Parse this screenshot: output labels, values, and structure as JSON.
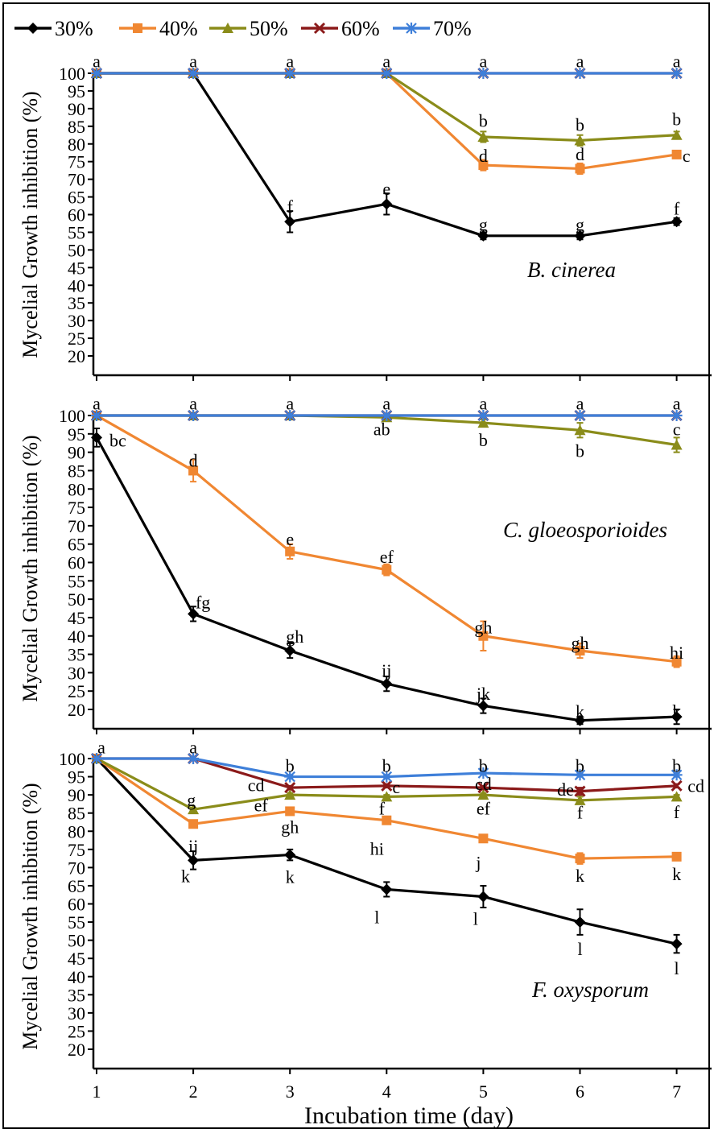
{
  "chart_data": {
    "type": "line",
    "xlabel": "Incubation time (day)",
    "x": [
      1,
      2,
      3,
      4,
      5,
      6,
      7
    ],
    "legend_position": "top",
    "legend": [
      {
        "name": "30%",
        "color": "#000000",
        "marker": "diamond"
      },
      {
        "name": "40%",
        "color": "#F08732",
        "marker": "square"
      },
      {
        "name": "50%",
        "color": "#8A8C1A",
        "marker": "triangle"
      },
      {
        "name": "60%",
        "color": "#8B1A1A",
        "marker": "x"
      },
      {
        "name": "70%",
        "color": "#3E7FD9",
        "marker": "asterisk"
      }
    ],
    "panels": [
      {
        "title": "B. cinerea",
        "ylabel": "Mycelial Growth inhibition (%)",
        "ylim": [
          15,
          100
        ],
        "yticks": [
          20,
          25,
          30,
          35,
          40,
          45,
          50,
          55,
          60,
          65,
          70,
          75,
          80,
          85,
          90,
          95,
          100
        ],
        "series": [
          {
            "name": "30%",
            "values": [
              100,
              100,
              58,
              63,
              54,
              54,
              58
            ],
            "errors": [
              0,
              0,
              3,
              3,
              1,
              1,
              1
            ]
          },
          {
            "name": "40%",
            "values": [
              100,
              100,
              100,
              100,
              74,
              73,
              77
            ],
            "errors": [
              0,
              0,
              0,
              0,
              1.5,
              1.5,
              1
            ]
          },
          {
            "name": "50%",
            "values": [
              100,
              100,
              100,
              100,
              82,
              81,
              82.5
            ],
            "errors": [
              0,
              0,
              0,
              0,
              1.5,
              1.5,
              1
            ]
          },
          {
            "name": "60%",
            "values": [
              100,
              100,
              100,
              100,
              100,
              100,
              100
            ],
            "errors": [
              0,
              0,
              0,
              0,
              0,
              0,
              0
            ]
          },
          {
            "name": "70%",
            "values": [
              100,
              100,
              100,
              100,
              100,
              100,
              100
            ],
            "errors": [
              0,
              0,
              0,
              0,
              0,
              0,
              0
            ]
          }
        ],
        "annotations": [
          {
            "text": "a",
            "x": 1,
            "y": 103.3
          },
          {
            "text": "a",
            "x": 2,
            "y": 103.3
          },
          {
            "text": "a",
            "x": 3,
            "y": 103.3
          },
          {
            "text": "a",
            "x": 4,
            "y": 103.3
          },
          {
            "text": "a",
            "x": 5,
            "y": 103.3
          },
          {
            "text": "a",
            "x": 6,
            "y": 103.3
          },
          {
            "text": "a",
            "x": 7,
            "y": 103.3
          },
          {
            "text": "f",
            "x": 3,
            "y": 62.2
          },
          {
            "text": "e",
            "x": 4,
            "y": 67.2
          },
          {
            "text": "g",
            "x": 5,
            "y": 57.0
          },
          {
            "text": "g",
            "x": 6,
            "y": 57.0
          },
          {
            "text": "f",
            "x": 7,
            "y": 61.6
          },
          {
            "text": "d",
            "x": 5,
            "y": 76.5
          },
          {
            "text": "d",
            "x": 6,
            "y": 77.0
          },
          {
            "text": "c",
            "x": 7.1,
            "y": 76.5
          },
          {
            "text": "b",
            "x": 5,
            "y": 86.4
          },
          {
            "text": "b",
            "x": 6,
            "y": 85.3
          },
          {
            "text": "b",
            "x": 7,
            "y": 86.9
          }
        ]
      },
      {
        "title": "C. gloeosporioides",
        "ylabel": "Mycelial Growth inhibition (%)",
        "ylim": [
          15,
          100
        ],
        "yticks": [
          20,
          25,
          30,
          35,
          40,
          45,
          50,
          55,
          60,
          65,
          70,
          75,
          80,
          85,
          90,
          95,
          100
        ],
        "series": [
          {
            "name": "30%",
            "values": [
              94,
              46,
              36,
              27,
              21,
              17,
              18
            ],
            "errors": [
              2.5,
              2,
              2,
              2,
              2,
              1,
              2
            ]
          },
          {
            "name": "40%",
            "values": [
              100,
              85,
              63,
              58,
              40,
              36,
              33
            ],
            "errors": [
              0,
              3,
              2,
              1.5,
              4,
              2,
              1.5
            ]
          },
          {
            "name": "50%",
            "values": [
              100,
              100,
              100,
              99.5,
              98,
              96,
              92
            ],
            "errors": [
              0,
              0,
              0,
              0.5,
              1,
              2,
              2
            ]
          },
          {
            "name": "60%",
            "values": [
              100,
              100,
              100,
              100,
              100,
              100,
              100
            ],
            "errors": [
              0,
              0,
              0,
              0,
              0,
              0,
              0
            ]
          },
          {
            "name": "70%",
            "values": [
              100,
              100,
              100,
              100,
              100,
              100,
              100
            ],
            "errors": [
              0,
              0,
              0,
              0,
              0,
              0,
              0
            ]
          }
        ],
        "annotations": [
          {
            "text": "a",
            "x": 1,
            "y": 103.2
          },
          {
            "text": "a",
            "x": 2,
            "y": 103.2
          },
          {
            "text": "a",
            "x": 3,
            "y": 103.2
          },
          {
            "text": "a",
            "x": 4,
            "y": 103.2
          },
          {
            "text": "a",
            "x": 5,
            "y": 103.2
          },
          {
            "text": "a",
            "x": 6,
            "y": 103.2
          },
          {
            "text": "a",
            "x": 7,
            "y": 103.2
          },
          {
            "text": "bc",
            "x": 1.22,
            "y": 93.1
          },
          {
            "text": "d",
            "x": 2,
            "y": 87.6
          },
          {
            "text": "e",
            "x": 3,
            "y": 66.3
          },
          {
            "text": "ef",
            "x": 4,
            "y": 61.4
          },
          {
            "text": "gh",
            "x": 5,
            "y": 42.2
          },
          {
            "text": "gh",
            "x": 6,
            "y": 38.0
          },
          {
            "text": "hi",
            "x": 7,
            "y": 35.3
          },
          {
            "text": "fg",
            "x": 2.1,
            "y": 49.0
          },
          {
            "text": "gh",
            "x": 3.05,
            "y": 39.7
          },
          {
            "text": "ij",
            "x": 4,
            "y": 30.5
          },
          {
            "text": "jk",
            "x": 5,
            "y": 24.2
          },
          {
            "text": "k",
            "x": 6,
            "y": 19.3
          },
          {
            "text": "k",
            "x": 7,
            "y": 19.5
          },
          {
            "text": "ab",
            "x": 3.95,
            "y": 96.2
          },
          {
            "text": "b",
            "x": 5,
            "y": 93.2
          },
          {
            "text": "b",
            "x": 6,
            "y": 90.3
          },
          {
            "text": "c",
            "x": 7,
            "y": 96.2
          }
        ]
      },
      {
        "title": "F. oxysporum",
        "ylabel": "Mycelial Growth inhibition (%)",
        "ylim": [
          15,
          100
        ],
        "yticks": [
          20,
          25,
          30,
          35,
          40,
          45,
          50,
          55,
          60,
          65,
          70,
          75,
          80,
          85,
          90,
          95,
          100
        ],
        "series": [
          {
            "name": "30%",
            "values": [
              100,
              72,
              73.5,
              64,
              62,
              55,
              49
            ],
            "errors": [
              0,
              2.5,
              1.5,
              2,
              3,
              3.5,
              2.5
            ]
          },
          {
            "name": "40%",
            "values": [
              100,
              82,
              85.5,
              83,
              78,
              72.5,
              73
            ],
            "errors": [
              0,
              1,
              0.5,
              1,
              0.5,
              1.5,
              0.5
            ]
          },
          {
            "name": "50%",
            "values": [
              100,
              86,
              90,
              89.5,
              90,
              88.5,
              89.5
            ],
            "errors": [
              0,
              0.5,
              0.5,
              0.5,
              0.5,
              1,
              0.5
            ]
          },
          {
            "name": "60%",
            "values": [
              100,
              100,
              92,
              92.5,
              92,
              91,
              92.5
            ],
            "errors": [
              0,
              0,
              0.5,
              0.5,
              0.5,
              1,
              0.5
            ]
          },
          {
            "name": "70%",
            "values": [
              100,
              100,
              95,
              95,
              96,
              95.5,
              95.5
            ],
            "errors": [
              0,
              0,
              0.5,
              0.5,
              0.5,
              0.5,
              0.5
            ]
          }
        ],
        "annotations": [
          {
            "text": "a",
            "x": 1.05,
            "y": 103.0
          },
          {
            "text": "a",
            "x": 2,
            "y": 103.0
          },
          {
            "text": "b",
            "x": 3,
            "y": 97.9
          },
          {
            "text": "b",
            "x": 4,
            "y": 97.9
          },
          {
            "text": "b",
            "x": 5,
            "y": 97.9
          },
          {
            "text": "b",
            "x": 6,
            "y": 97.9
          },
          {
            "text": "b",
            "x": 7,
            "y": 97.9
          },
          {
            "text": "cd",
            "x": 2.65,
            "y": 92.6
          },
          {
            "text": "c",
            "x": 4.1,
            "y": 92.0
          },
          {
            "text": "cd",
            "x": 5,
            "y": 92.9
          },
          {
            "text": "de",
            "x": 5.85,
            "y": 91.4
          },
          {
            "text": "cd",
            "x": 7.2,
            "y": 92.3
          },
          {
            "text": "g",
            "x": 1.98,
            "y": 88.5
          },
          {
            "text": "ef",
            "x": 2.7,
            "y": 87.0
          },
          {
            "text": "f",
            "x": 3.95,
            "y": 86.1
          },
          {
            "text": "ef",
            "x": 5,
            "y": 86.1
          },
          {
            "text": "f",
            "x": 6,
            "y": 85.0
          },
          {
            "text": "f",
            "x": 7,
            "y": 85.2
          },
          {
            "text": "ij",
            "x": 2,
            "y": 75.9
          },
          {
            "text": "gh",
            "x": 3,
            "y": 81.0
          },
          {
            "text": "hi",
            "x": 3.9,
            "y": 75.1
          },
          {
            "text": "j",
            "x": 4.95,
            "y": 71.3
          },
          {
            "text": "k",
            "x": 6,
            "y": 67.7
          },
          {
            "text": "k",
            "x": 7,
            "y": 68.1
          },
          {
            "text": "k",
            "x": 1.92,
            "y": 67.5
          },
          {
            "text": "k",
            "x": 3,
            "y": 67.3
          },
          {
            "text": "l",
            "x": 3.9,
            "y": 56.2
          },
          {
            "text": "l",
            "x": 4.92,
            "y": 55.8
          },
          {
            "text": "l",
            "x": 6,
            "y": 47.5
          },
          {
            "text": "l",
            "x": 7,
            "y": 42.2
          }
        ]
      }
    ]
  }
}
